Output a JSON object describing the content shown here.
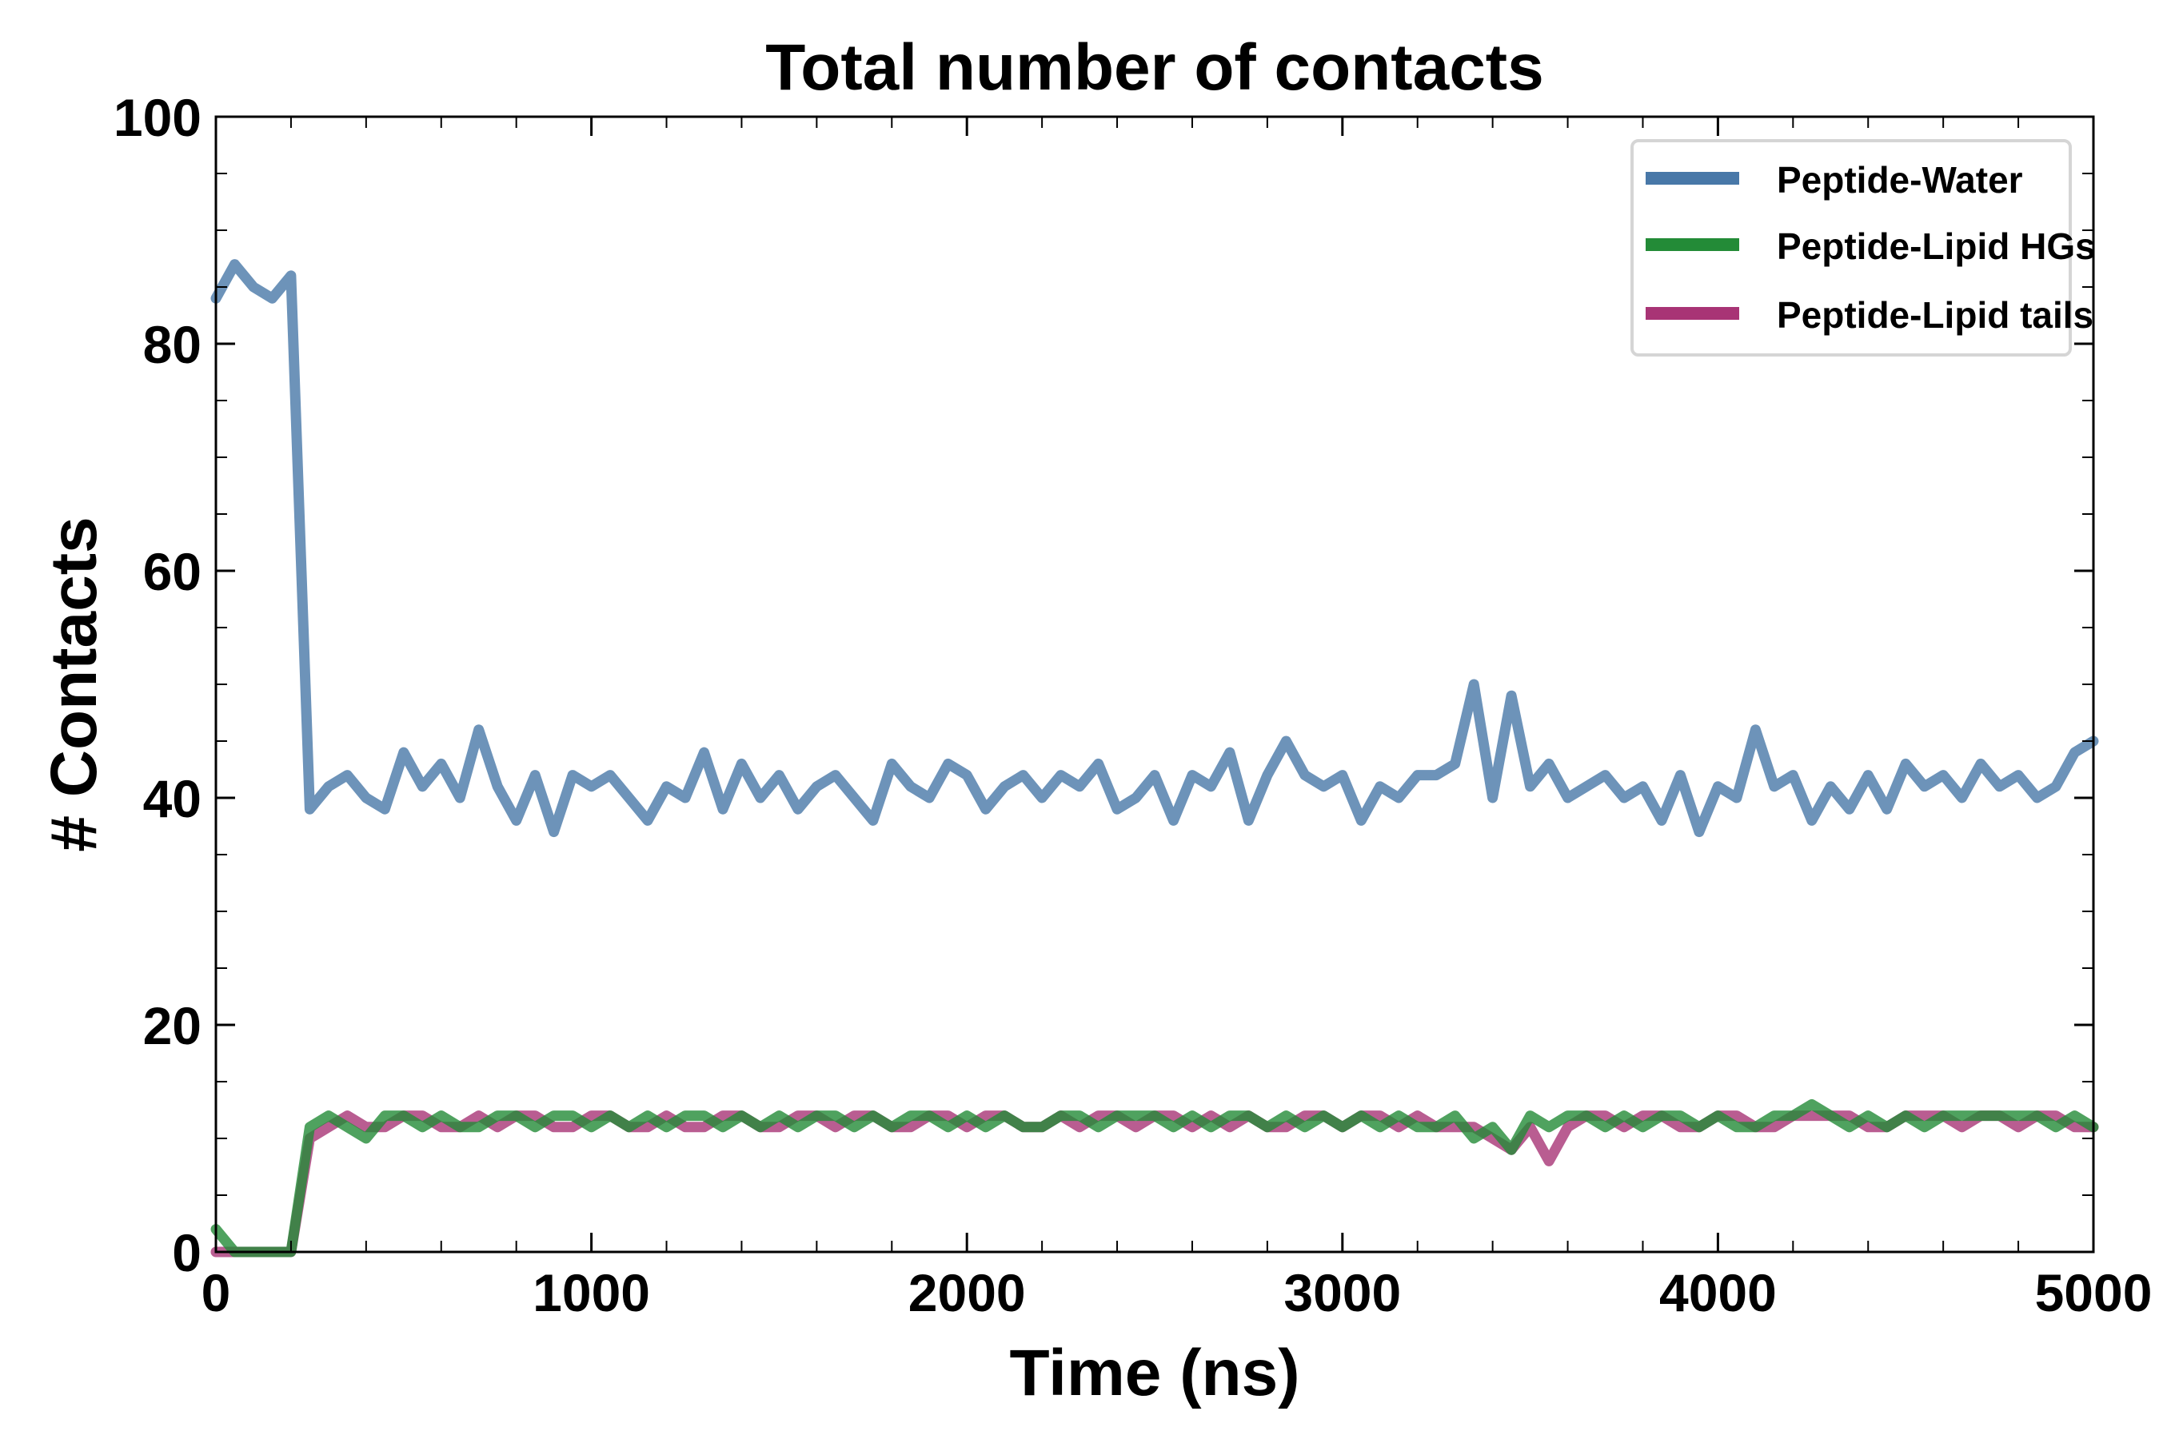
{
  "chart_data": {
    "type": "line",
    "title": "Total number of contacts",
    "xlabel": "Time (ns)",
    "ylabel": "# Contacts",
    "xlim": [
      0,
      5000
    ],
    "ylim": [
      0,
      100
    ],
    "xticks": [
      "0",
      "1000",
      "2000",
      "3000",
      "4000",
      "5000"
    ],
    "yticks": [
      "0",
      "20",
      "40",
      "60",
      "80",
      "100"
    ],
    "grid": false,
    "legend_position": "top-right",
    "x_start": 0,
    "x_step": 50,
    "series": [
      {
        "name": "Peptide-Water",
        "color": "#4878a8",
        "values": [
          84,
          87,
          85,
          84,
          86,
          39,
          41,
          42,
          40,
          39,
          44,
          41,
          43,
          40,
          46,
          41,
          38,
          42,
          37,
          42,
          41,
          42,
          40,
          38,
          41,
          40,
          44,
          39,
          43,
          40,
          42,
          39,
          41,
          42,
          40,
          38,
          43,
          41,
          40,
          43,
          42,
          39,
          41,
          42,
          40,
          42,
          41,
          43,
          39,
          40,
          42,
          38,
          42,
          41,
          44,
          38,
          42,
          45,
          42,
          41,
          42,
          38,
          41,
          40,
          42,
          42,
          43,
          50,
          40,
          49,
          41,
          43,
          40,
          41,
          42,
          40,
          41,
          38,
          42,
          37,
          41,
          40,
          46,
          41,
          42,
          38,
          41,
          39,
          42,
          39,
          43,
          41,
          42,
          40,
          43,
          41,
          42,
          40,
          41,
          44,
          45
        ]
      },
      {
        "name": "Peptide-Lipid HGs",
        "color": "#238b37",
        "values": [
          2,
          0,
          0,
          0,
          0,
          11,
          12,
          11,
          10,
          12,
          12,
          11,
          12,
          11,
          11,
          12,
          12,
          11,
          12,
          12,
          11,
          12,
          11,
          12,
          11,
          12,
          12,
          11,
          12,
          11,
          12,
          11,
          12,
          12,
          11,
          12,
          11,
          12,
          12,
          11,
          12,
          11,
          12,
          11,
          11,
          12,
          12,
          11,
          12,
          12,
          12,
          11,
          12,
          11,
          12,
          12,
          11,
          12,
          11,
          12,
          11,
          12,
          11,
          12,
          11,
          11,
          12,
          10,
          11,
          9,
          12,
          11,
          12,
          12,
          11,
          12,
          11,
          12,
          12,
          11,
          12,
          11,
          11,
          12,
          12,
          13,
          12,
          11,
          12,
          11,
          12,
          11,
          12,
          12,
          12,
          12,
          12,
          12,
          11,
          12,
          11
        ]
      },
      {
        "name": "Peptide-Lipid tails",
        "color": "#a83475",
        "values": [
          0,
          0,
          0,
          0,
          0,
          10,
          11,
          12,
          11,
          11,
          12,
          12,
          11,
          11,
          12,
          11,
          12,
          12,
          11,
          11,
          12,
          12,
          11,
          11,
          12,
          11,
          11,
          12,
          12,
          11,
          11,
          12,
          12,
          11,
          12,
          12,
          11,
          11,
          12,
          12,
          11,
          12,
          12,
          11,
          11,
          12,
          11,
          12,
          12,
          11,
          12,
          12,
          11,
          12,
          11,
          12,
          11,
          11,
          12,
          12,
          11,
          12,
          12,
          11,
          12,
          11,
          11,
          11,
          10,
          9,
          11,
          8,
          11,
          12,
          12,
          11,
          12,
          12,
          11,
          11,
          12,
          12,
          11,
          11,
          12,
          12,
          12,
          12,
          11,
          11,
          12,
          12,
          12,
          11,
          12,
          12,
          11,
          12,
          12,
          11,
          11
        ]
      }
    ]
  }
}
